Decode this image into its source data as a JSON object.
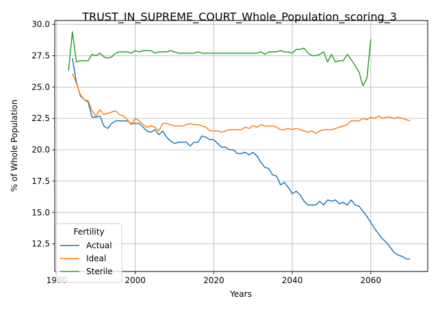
{
  "chart_data": {
    "type": "line",
    "title": "TRUST_IN_SUPREME_COURT_Whole_Population_scoring_3",
    "xlabel": "Years",
    "ylabel": "% of Whole Population",
    "xlim": [
      1979.5,
      2074.5
    ],
    "ylim": [
      10.3,
      30.3
    ],
    "xticks": [
      1980,
      2000,
      2020,
      2040,
      2060
    ],
    "yticks": [
      12.5,
      15.0,
      17.5,
      20.0,
      22.5,
      25.0,
      27.5,
      30.0
    ],
    "xtick_labels": [
      "1980",
      "2000",
      "2020",
      "2040",
      "2060"
    ],
    "ytick_labels": [
      "12.5",
      "15.0",
      "17.5",
      "20.0",
      "22.5",
      "25.0",
      "27.5",
      "30.0"
    ],
    "grid": true,
    "legend": {
      "title": "Fertility",
      "position": "lower-left"
    },
    "series": [
      {
        "name": "Actual",
        "color": "#1f77b4",
        "points": [
          [
            1984,
            27.3
          ],
          [
            1985,
            25.4
          ],
          [
            1986,
            24.3
          ],
          [
            1987,
            24.0
          ],
          [
            1988,
            23.8
          ],
          [
            1989,
            22.6
          ],
          [
            1990,
            22.6
          ],
          [
            1991,
            22.7
          ],
          [
            1992,
            21.9
          ],
          [
            1993,
            21.7
          ],
          [
            1994,
            22.1
          ],
          [
            1995,
            22.3
          ],
          [
            1996,
            22.3
          ],
          [
            1997,
            22.3
          ],
          [
            1998,
            22.3
          ],
          [
            1999,
            22.1
          ],
          [
            2000,
            22.1
          ],
          [
            2001,
            22.1
          ],
          [
            2002,
            21.8
          ],
          [
            2003,
            21.5
          ],
          [
            2004,
            21.4
          ],
          [
            2005,
            21.6
          ],
          [
            2006,
            21.2
          ],
          [
            2007,
            21.5
          ],
          [
            2008,
            21.0
          ],
          [
            2009,
            20.7
          ],
          [
            2010,
            20.5
          ],
          [
            2011,
            20.6
          ],
          [
            2012,
            20.6
          ],
          [
            2013,
            20.6
          ],
          [
            2014,
            20.3
          ],
          [
            2015,
            20.6
          ],
          [
            2016,
            20.6
          ],
          [
            2017,
            21.1
          ],
          [
            2018,
            21.0
          ],
          [
            2019,
            20.8
          ],
          [
            2020,
            20.8
          ],
          [
            2021,
            20.5
          ],
          [
            2022,
            20.2
          ],
          [
            2023,
            20.2
          ],
          [
            2024,
            20.0
          ],
          [
            2025,
            20.0
          ],
          [
            2026,
            19.7
          ],
          [
            2027,
            19.7
          ],
          [
            2028,
            19.8
          ],
          [
            2029,
            19.6
          ],
          [
            2030,
            19.8
          ],
          [
            2031,
            19.5
          ],
          [
            2032,
            19.0
          ],
          [
            2033,
            18.6
          ],
          [
            2034,
            18.5
          ],
          [
            2035,
            18.0
          ],
          [
            2036,
            17.9
          ],
          [
            2037,
            17.2
          ],
          [
            2038,
            17.4
          ],
          [
            2039,
            17.0
          ],
          [
            2040,
            16.5
          ],
          [
            2041,
            16.7
          ],
          [
            2042,
            16.4
          ],
          [
            2043,
            15.9
          ],
          [
            2044,
            15.6
          ],
          [
            2045,
            15.6
          ],
          [
            2046,
            15.6
          ],
          [
            2047,
            15.9
          ],
          [
            2048,
            15.6
          ],
          [
            2049,
            16.0
          ],
          [
            2050,
            15.9
          ],
          [
            2051,
            16.0
          ],
          [
            2052,
            15.7
          ],
          [
            2053,
            15.8
          ],
          [
            2054,
            15.6
          ],
          [
            2055,
            16.0
          ],
          [
            2056,
            15.6
          ],
          [
            2057,
            15.5
          ],
          [
            2058,
            15.1
          ],
          [
            2059,
            14.7
          ],
          [
            2060,
            14.2
          ],
          [
            2061,
            13.7
          ],
          [
            2062,
            13.3
          ],
          [
            2063,
            12.9
          ],
          [
            2064,
            12.6
          ],
          [
            2065,
            12.2
          ],
          [
            2066,
            11.8
          ],
          [
            2067,
            11.6
          ],
          [
            2068,
            11.5
          ],
          [
            2069,
            11.3
          ],
          [
            2070,
            11.3
          ]
        ]
      },
      {
        "name": "Ideal",
        "color": "#ff7f0e",
        "points": [
          [
            1984,
            26.1
          ],
          [
            1985,
            25.3
          ],
          [
            1986,
            24.4
          ],
          [
            1987,
            24.0
          ],
          [
            1988,
            23.9
          ],
          [
            1989,
            23.1
          ],
          [
            1990,
            22.7
          ],
          [
            1991,
            23.2
          ],
          [
            1992,
            22.8
          ],
          [
            1993,
            22.9
          ],
          [
            1994,
            23.0
          ],
          [
            1995,
            23.1
          ],
          [
            1996,
            22.8
          ],
          [
            1997,
            22.7
          ],
          [
            1998,
            22.4
          ],
          [
            1999,
            22.0
          ],
          [
            2000,
            22.5
          ],
          [
            2001,
            22.3
          ],
          [
            2002,
            22.0
          ],
          [
            2003,
            21.8
          ],
          [
            2004,
            21.9
          ],
          [
            2005,
            21.8
          ],
          [
            2006,
            21.5
          ],
          [
            2007,
            22.1
          ],
          [
            2008,
            22.1
          ],
          [
            2009,
            22.0
          ],
          [
            2010,
            21.9
          ],
          [
            2011,
            21.9
          ],
          [
            2012,
            21.9
          ],
          [
            2013,
            22.0
          ],
          [
            2014,
            22.1
          ],
          [
            2015,
            22.0
          ],
          [
            2016,
            22.0
          ],
          [
            2017,
            21.9
          ],
          [
            2018,
            21.8
          ],
          [
            2019,
            21.5
          ],
          [
            2020,
            21.5
          ],
          [
            2021,
            21.5
          ],
          [
            2022,
            21.4
          ],
          [
            2023,
            21.5
          ],
          [
            2024,
            21.6
          ],
          [
            2025,
            21.6
          ],
          [
            2026,
            21.6
          ],
          [
            2027,
            21.6
          ],
          [
            2028,
            21.8
          ],
          [
            2029,
            21.7
          ],
          [
            2030,
            21.9
          ],
          [
            2031,
            21.8
          ],
          [
            2032,
            22.0
          ],
          [
            2033,
            21.9
          ],
          [
            2034,
            21.9
          ],
          [
            2035,
            21.9
          ],
          [
            2036,
            21.8
          ],
          [
            2037,
            21.6
          ],
          [
            2038,
            21.6
          ],
          [
            2039,
            21.7
          ],
          [
            2040,
            21.6
          ],
          [
            2041,
            21.7
          ],
          [
            2042,
            21.6
          ],
          [
            2043,
            21.5
          ],
          [
            2044,
            21.4
          ],
          [
            2045,
            21.5
          ],
          [
            2046,
            21.3
          ],
          [
            2047,
            21.5
          ],
          [
            2048,
            21.6
          ],
          [
            2049,
            21.6
          ],
          [
            2050,
            21.6
          ],
          [
            2051,
            21.7
          ],
          [
            2052,
            21.8
          ],
          [
            2053,
            21.9
          ],
          [
            2054,
            22.0
          ],
          [
            2055,
            22.3
          ],
          [
            2056,
            22.3
          ],
          [
            2057,
            22.3
          ],
          [
            2058,
            22.5
          ],
          [
            2059,
            22.4
          ],
          [
            2060,
            22.6
          ],
          [
            2061,
            22.5
          ],
          [
            2062,
            22.7
          ],
          [
            2063,
            22.5
          ],
          [
            2064,
            22.6
          ],
          [
            2065,
            22.6
          ],
          [
            2066,
            22.5
          ],
          [
            2067,
            22.6
          ],
          [
            2068,
            22.5
          ],
          [
            2069,
            22.4
          ],
          [
            2070,
            22.3
          ]
        ]
      },
      {
        "name": "Sterile",
        "color": "#2ca02c",
        "points": [
          [
            1983,
            26.3
          ],
          [
            1984,
            29.4
          ],
          [
            1985,
            27.0
          ],
          [
            1986,
            27.1
          ],
          [
            1987,
            27.1
          ],
          [
            1988,
            27.1
          ],
          [
            1989,
            27.6
          ],
          [
            1990,
            27.5
          ],
          [
            1991,
            27.7
          ],
          [
            1992,
            27.4
          ],
          [
            1993,
            27.3
          ],
          [
            1994,
            27.4
          ],
          [
            1995,
            27.7
          ],
          [
            1996,
            27.8
          ],
          [
            1997,
            27.8
          ],
          [
            1998,
            27.8
          ],
          [
            1999,
            27.7
          ],
          [
            2000,
            27.9
          ],
          [
            2001,
            27.8
          ],
          [
            2002,
            27.9
          ],
          [
            2003,
            27.9
          ],
          [
            2004,
            27.9
          ],
          [
            2005,
            27.7
          ],
          [
            2006,
            27.8
          ],
          [
            2007,
            27.8
          ],
          [
            2008,
            27.8
          ],
          [
            2009,
            27.9
          ],
          [
            2010,
            27.8
          ],
          [
            2011,
            27.7
          ],
          [
            2012,
            27.7
          ],
          [
            2013,
            27.7
          ],
          [
            2014,
            27.7
          ],
          [
            2015,
            27.7
          ],
          [
            2016,
            27.8
          ],
          [
            2017,
            27.7
          ],
          [
            2018,
            27.7
          ],
          [
            2019,
            27.7
          ],
          [
            2020,
            27.7
          ],
          [
            2021,
            27.7
          ],
          [
            2022,
            27.7
          ],
          [
            2023,
            27.7
          ],
          [
            2024,
            27.7
          ],
          [
            2025,
            27.7
          ],
          [
            2026,
            27.7
          ],
          [
            2027,
            27.7
          ],
          [
            2028,
            27.7
          ],
          [
            2029,
            27.7
          ],
          [
            2030,
            27.7
          ],
          [
            2031,
            27.7
          ],
          [
            2032,
            27.8
          ],
          [
            2033,
            27.6
          ],
          [
            2034,
            27.8
          ],
          [
            2035,
            27.8
          ],
          [
            2036,
            27.8
          ],
          [
            2037,
            27.9
          ],
          [
            2038,
            27.8
          ],
          [
            2039,
            27.8
          ],
          [
            2040,
            27.7
          ],
          [
            2041,
            28.0
          ],
          [
            2042,
            28.0
          ],
          [
            2043,
            28.1
          ],
          [
            2044,
            27.7
          ],
          [
            2045,
            27.5
          ],
          [
            2046,
            27.5
          ],
          [
            2047,
            27.6
          ],
          [
            2048,
            27.8
          ],
          [
            2049,
            27.0
          ],
          [
            2050,
            27.6
          ],
          [
            2051,
            27.0
          ],
          [
            2052,
            27.1
          ],
          [
            2053,
            27.1
          ],
          [
            2054,
            27.6
          ],
          [
            2055,
            27.2
          ],
          [
            2056,
            26.7
          ],
          [
            2057,
            26.2
          ],
          [
            2058,
            25.1
          ],
          [
            2059,
            25.7
          ],
          [
            2060,
            28.8
          ]
        ]
      }
    ]
  }
}
